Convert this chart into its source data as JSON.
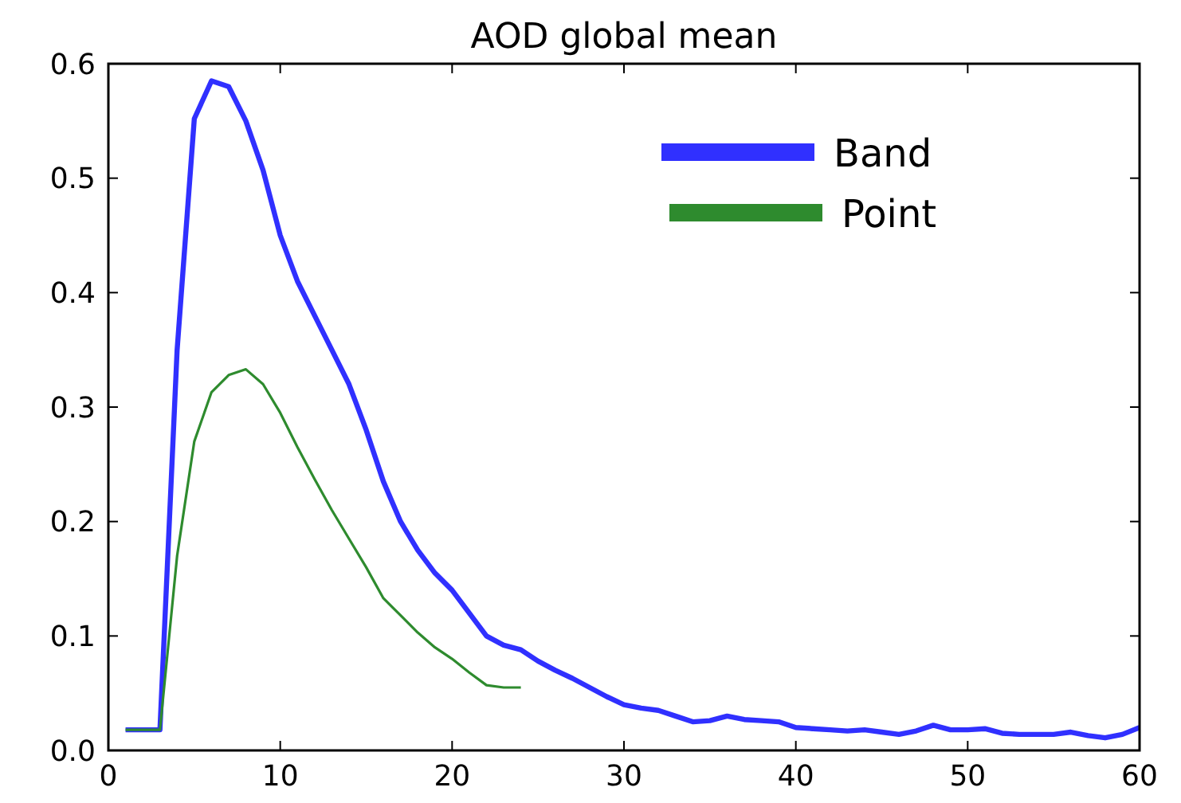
{
  "chart_data": {
    "type": "line",
    "title": "AOD global mean",
    "xlim": [
      0,
      60
    ],
    "xticks": [
      0,
      10,
      20,
      30,
      40,
      50,
      60
    ],
    "ylim": [
      0,
      0.6
    ],
    "yticks": [
      {
        "value": 0,
        "label": "0.0"
      },
      {
        "value": 0.1,
        "label": "0.1"
      },
      {
        "value": 0.2,
        "label": "0.2"
      },
      {
        "value": 0.3,
        "label": "0.3"
      },
      {
        "value": 0.4,
        "label": "0.4"
      },
      {
        "value": 0.5,
        "label": "0.5"
      },
      {
        "value": 0.6,
        "label": "0.6"
      }
    ],
    "legend": "top right",
    "grid": false,
    "series": [
      {
        "name": "Band",
        "color": "#3030ff",
        "x": [
          1,
          2,
          3,
          4,
          5,
          6,
          7,
          8,
          9,
          10,
          11,
          12,
          13,
          14,
          15,
          16,
          17,
          18,
          19,
          20,
          21,
          22,
          23,
          24,
          25,
          26,
          27,
          28,
          29,
          30,
          31,
          32,
          33,
          34,
          35,
          36,
          37,
          38,
          39,
          40,
          41,
          42,
          43,
          44,
          45,
          46,
          47,
          48,
          49,
          50,
          51,
          52,
          53,
          54,
          55,
          56,
          57,
          58,
          59,
          60
        ],
        "values": [
          0.018,
          0.018,
          0.018,
          0.35,
          0.552,
          0.585,
          0.58,
          0.55,
          0.507,
          0.45,
          0.41,
          0.38,
          0.35,
          0.32,
          0.28,
          0.235,
          0.2,
          0.175,
          0.155,
          0.14,
          0.12,
          0.1,
          0.092,
          0.088,
          0.078,
          0.07,
          0.063,
          0.055,
          0.047,
          0.04,
          0.037,
          0.035,
          0.03,
          0.025,
          0.026,
          0.03,
          0.027,
          0.026,
          0.025,
          0.02,
          0.019,
          0.018,
          0.017,
          0.018,
          0.016,
          0.014,
          0.017,
          0.022,
          0.018,
          0.018,
          0.019,
          0.015,
          0.014,
          0.014,
          0.014,
          0.016,
          0.013,
          0.011,
          0.014,
          0.02
        ]
      },
      {
        "name": "Point",
        "color": "#2e8b2e",
        "x": [
          1,
          2,
          3,
          4,
          5,
          6,
          7,
          8,
          9,
          10,
          11,
          12,
          13,
          14,
          15,
          16,
          17,
          18,
          19,
          20,
          21,
          22,
          23,
          24
        ],
        "values": [
          0.018,
          0.018,
          0.018,
          0.17,
          0.27,
          0.313,
          0.328,
          0.333,
          0.32,
          0.295,
          0.265,
          0.237,
          0.21,
          0.185,
          0.16,
          0.133,
          0.118,
          0.103,
          0.09,
          0.08,
          0.068,
          0.057,
          0.055,
          0.055
        ]
      }
    ]
  }
}
